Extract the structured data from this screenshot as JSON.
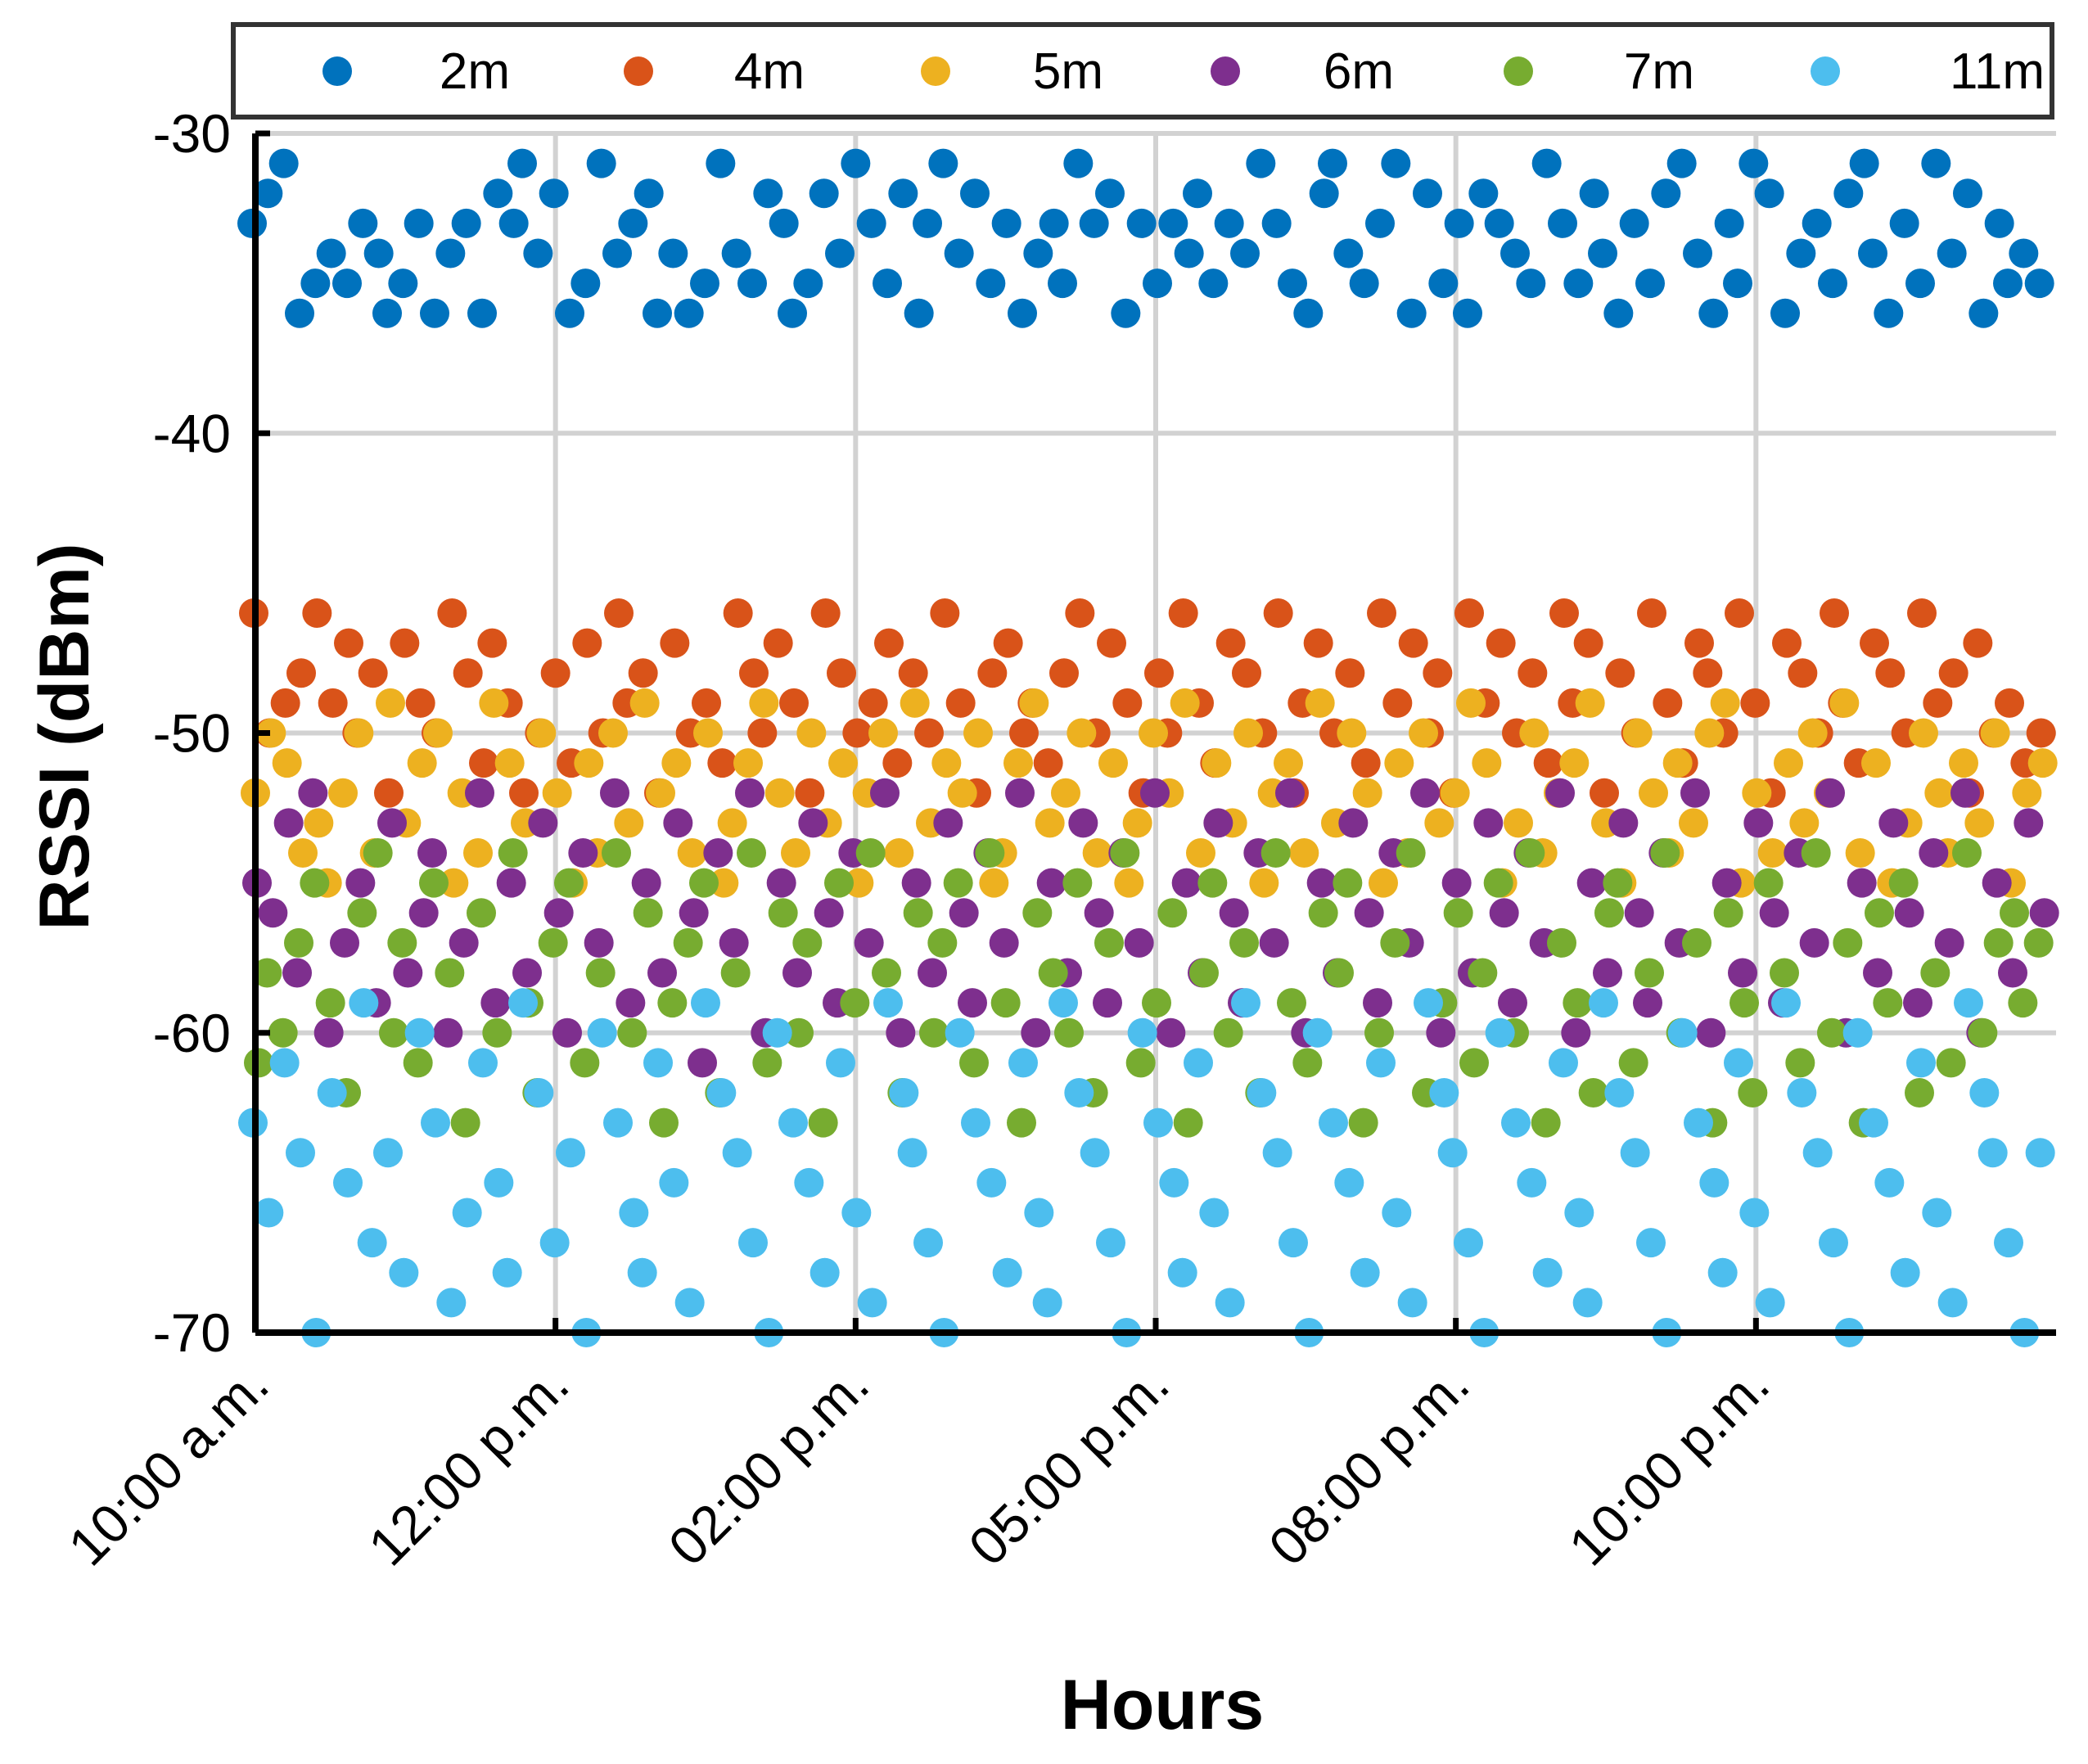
{
  "chart_data": {
    "type": "scatter",
    "title": "",
    "xlabel": "Hours",
    "ylabel": "RSSI (dBm)",
    "ylim": [
      -70,
      -30
    ],
    "yticks": [
      -30,
      -40,
      -50,
      -60,
      -70
    ],
    "xlim": [
      0,
      120
    ],
    "xticks": [
      {
        "value": 0,
        "label": "10:00 a.m."
      },
      {
        "value": 20,
        "label": "12:00 p.m."
      },
      {
        "value": 40,
        "label": "02:00 p.m."
      },
      {
        "value": 60,
        "label": "05:00 p.m."
      },
      {
        "value": 80,
        "label": "08:00 p.m."
      },
      {
        "value": 100,
        "label": "10:00 p.m."
      }
    ],
    "grid": true,
    "legend_position": "top",
    "sample_count": 120,
    "series": [
      {
        "name": "2m",
        "color": "#0072BD",
        "y": [
          -33,
          -32,
          -31,
          -36,
          -35,
          -34,
          -35,
          -33,
          -34,
          -36,
          -35,
          -33,
          -36,
          -34,
          -33,
          -36,
          -32,
          -33,
          -31,
          -34,
          -32,
          -36,
          -35,
          -31,
          -34,
          -33,
          -32,
          -36,
          -34,
          -36,
          -35,
          -31,
          -34,
          -35,
          -32,
          -33,
          -36,
          -35,
          -32,
          -34,
          -31,
          -33,
          -35,
          -32,
          -36,
          -33,
          -31,
          -34,
          -32,
          -35,
          -33,
          -36,
          -34,
          -33,
          -35,
          -31,
          -33,
          -32,
          -36,
          -33,
          -35,
          -33,
          -34,
          -32,
          -35,
          -33,
          -34,
          -31,
          -33,
          -35,
          -36,
          -32,
          -31,
          -34,
          -35,
          -33,
          -31,
          -36,
          -32,
          -35,
          -33,
          -36,
          -32,
          -33,
          -34,
          -35,
          -31,
          -33,
          -35,
          -32,
          -34,
          -36,
          -33,
          -35,
          -32,
          -31,
          -34,
          -36,
          -33,
          -35,
          -31,
          -32,
          -36,
          -34,
          -33,
          -35,
          -32,
          -31,
          -34,
          -36,
          -33,
          -35,
          -31,
          -34,
          -32,
          -36,
          -33,
          -35,
          -34,
          -35
        ]
      },
      {
        "name": "4m",
        "color": "#D95319",
        "y": [
          -46,
          -50,
          -49,
          -48,
          -46,
          -49,
          -47,
          -50,
          -48,
          -52,
          -47,
          -49,
          -50,
          -46,
          -48,
          -51,
          -47,
          -49,
          -52,
          -50,
          -48,
          -51,
          -47,
          -50,
          -46,
          -49,
          -48,
          -52,
          -47,
          -50,
          -49,
          -51,
          -46,
          -48,
          -50,
          -47,
          -49,
          -52,
          -46,
          -48,
          -50,
          -49,
          -47,
          -51,
          -48,
          -50,
          -46,
          -49,
          -52,
          -48,
          -47,
          -50,
          -49,
          -51,
          -48,
          -46,
          -50,
          -47,
          -49,
          -52,
          -48,
          -50,
          -46,
          -49,
          -51,
          -47,
          -48,
          -50,
          -46,
          -52,
          -49,
          -47,
          -50,
          -48,
          -51,
          -46,
          -49,
          -47,
          -50,
          -48,
          -52,
          -46,
          -49,
          -47,
          -50,
          -48,
          -51,
          -46,
          -49,
          -47,
          -52,
          -48,
          -50,
          -46,
          -49,
          -51,
          -47,
          -48,
          -50,
          -46,
          -49,
          -52,
          -47,
          -48,
          -50,
          -46,
          -49,
          -51,
          -47,
          -48,
          -50,
          -46,
          -49,
          -48,
          -52,
          -47,
          -50,
          -49,
          -51,
          -50
        ]
      },
      {
        "name": "5m",
        "color": "#EDB120",
        "y": [
          -52,
          -50,
          -51,
          -54,
          -53,
          -55,
          -52,
          -50,
          -54,
          -49,
          -53,
          -51,
          -50,
          -55,
          -52,
          -54,
          -49,
          -51,
          -53,
          -50,
          -52,
          -55,
          -51,
          -54,
          -50,
          -53,
          -49,
          -52,
          -51,
          -54,
          -50,
          -55,
          -53,
          -51,
          -49,
          -52,
          -54,
          -50,
          -53,
          -51,
          -55,
          -52,
          -50,
          -54,
          -49,
          -53,
          -51,
          -52,
          -50,
          -55,
          -54,
          -51,
          -49,
          -53,
          -52,
          -50,
          -54,
          -51,
          -55,
          -53,
          -50,
          -52,
          -49,
          -54,
          -51,
          -53,
          -50,
          -55,
          -52,
          -51,
          -54,
          -49,
          -53,
          -50,
          -52,
          -55,
          -51,
          -54,
          -50,
          -53,
          -52,
          -49,
          -51,
          -55,
          -53,
          -50,
          -54,
          -52,
          -51,
          -49,
          -53,
          -55,
          -50,
          -52,
          -54,
          -51,
          -53,
          -50,
          -49,
          -55,
          -52,
          -54,
          -51,
          -53,
          -50,
          -52,
          -49,
          -54,
          -51,
          -55,
          -53,
          -50,
          -52,
          -54,
          -51,
          -53,
          -50,
          -55,
          -52,
          -51
        ]
      },
      {
        "name": "6m",
        "color": "#7E2F8E",
        "y": [
          -55,
          -56,
          -53,
          -58,
          -52,
          -60,
          -57,
          -55,
          -59,
          -53,
          -58,
          -56,
          -54,
          -60,
          -57,
          -52,
          -59,
          -55,
          -58,
          -53,
          -56,
          -60,
          -54,
          -57,
          -52,
          -59,
          -55,
          -58,
          -53,
          -56,
          -61,
          -54,
          -57,
          -52,
          -60,
          -55,
          -58,
          -53,
          -56,
          -59,
          -54,
          -57,
          -52,
          -60,
          -55,
          -58,
          -53,
          -56,
          -59,
          -54,
          -57,
          -52,
          -60,
          -55,
          -58,
          -53,
          -56,
          -59,
          -54,
          -57,
          -52,
          -60,
          -55,
          -58,
          -53,
          -56,
          -59,
          -54,
          -57,
          -52,
          -60,
          -55,
          -58,
          -53,
          -56,
          -59,
          -54,
          -57,
          -52,
          -60,
          -55,
          -58,
          -53,
          -56,
          -59,
          -54,
          -57,
          -52,
          -60,
          -55,
          -58,
          -53,
          -56,
          -59,
          -54,
          -57,
          -52,
          -60,
          -55,
          -58,
          -53,
          -56,
          -59,
          -54,
          -57,
          -52,
          -60,
          -55,
          -58,
          -53,
          -56,
          -59,
          -54,
          -57,
          -52,
          -60,
          -55,
          -58,
          -53,
          -56
        ]
      },
      {
        "name": "7m",
        "color": "#77AC30",
        "y": [
          -61,
          -58,
          -60,
          -57,
          -55,
          -59,
          -62,
          -56,
          -54,
          -60,
          -57,
          -61,
          -55,
          -58,
          -63,
          -56,
          -60,
          -54,
          -59,
          -62,
          -57,
          -55,
          -61,
          -58,
          -54,
          -60,
          -56,
          -63,
          -59,
          -57,
          -55,
          -62,
          -58,
          -54,
          -61,
          -56,
          -60,
          -57,
          -63,
          -55,
          -59,
          -54,
          -58,
          -62,
          -56,
          -60,
          -57,
          -55,
          -61,
          -54,
          -59,
          -63,
          -56,
          -58,
          -60,
          -55,
          -62,
          -57,
          -54,
          -61,
          -59,
          -56,
          -63,
          -58,
          -55,
          -60,
          -57,
          -62,
          -54,
          -59,
          -61,
          -56,
          -58,
          -55,
          -63,
          -60,
          -57,
          -54,
          -62,
          -59,
          -56,
          -61,
          -58,
          -55,
          -60,
          -54,
          -63,
          -57,
          -59,
          -62,
          -56,
          -55,
          -61,
          -58,
          -54,
          -60,
          -57,
          -63,
          -56,
          -59,
          -62,
          -55,
          -58,
          -61,
          -54,
          -60,
          -57,
          -63,
          -56,
          -59,
          -55,
          -62,
          -58,
          -61,
          -54,
          -60,
          -57,
          -56,
          -59,
          -57
        ]
      },
      {
        "name": "11m",
        "color": "#4DBEEE",
        "y": [
          -63,
          -66,
          -61,
          -64,
          -70,
          -62,
          -65,
          -59,
          -67,
          -64,
          -68,
          -60,
          -63,
          -69,
          -66,
          -61,
          -65,
          -68,
          -59,
          -62,
          -67,
          -64,
          -70,
          -60,
          -63,
          -66,
          -68,
          -61,
          -65,
          -69,
          -59,
          -62,
          -64,
          -67,
          -70,
          -60,
          -63,
          -65,
          -68,
          -61,
          -66,
          -69,
          -59,
          -62,
          -64,
          -67,
          -70,
          -60,
          -63,
          -65,
          -68,
          -61,
          -66,
          -69,
          -59,
          -62,
          -64,
          -67,
          -70,
          -60,
          -63,
          -65,
          -68,
          -61,
          -66,
          -69,
          -59,
          -62,
          -64,
          -67,
          -70,
          -60,
          -63,
          -65,
          -68,
          -61,
          -66,
          -69,
          -59,
          -62,
          -64,
          -67,
          -70,
          -60,
          -63,
          -65,
          -68,
          -61,
          -66,
          -69,
          -59,
          -62,
          -64,
          -67,
          -70,
          -60,
          -63,
          -65,
          -68,
          -61,
          -66,
          -69,
          -59,
          -62,
          -64,
          -67,
          -70,
          -60,
          -63,
          -65,
          -68,
          -61,
          -66,
          -69,
          -59,
          -62,
          -64,
          -67,
          -70,
          -64
        ]
      }
    ]
  }
}
